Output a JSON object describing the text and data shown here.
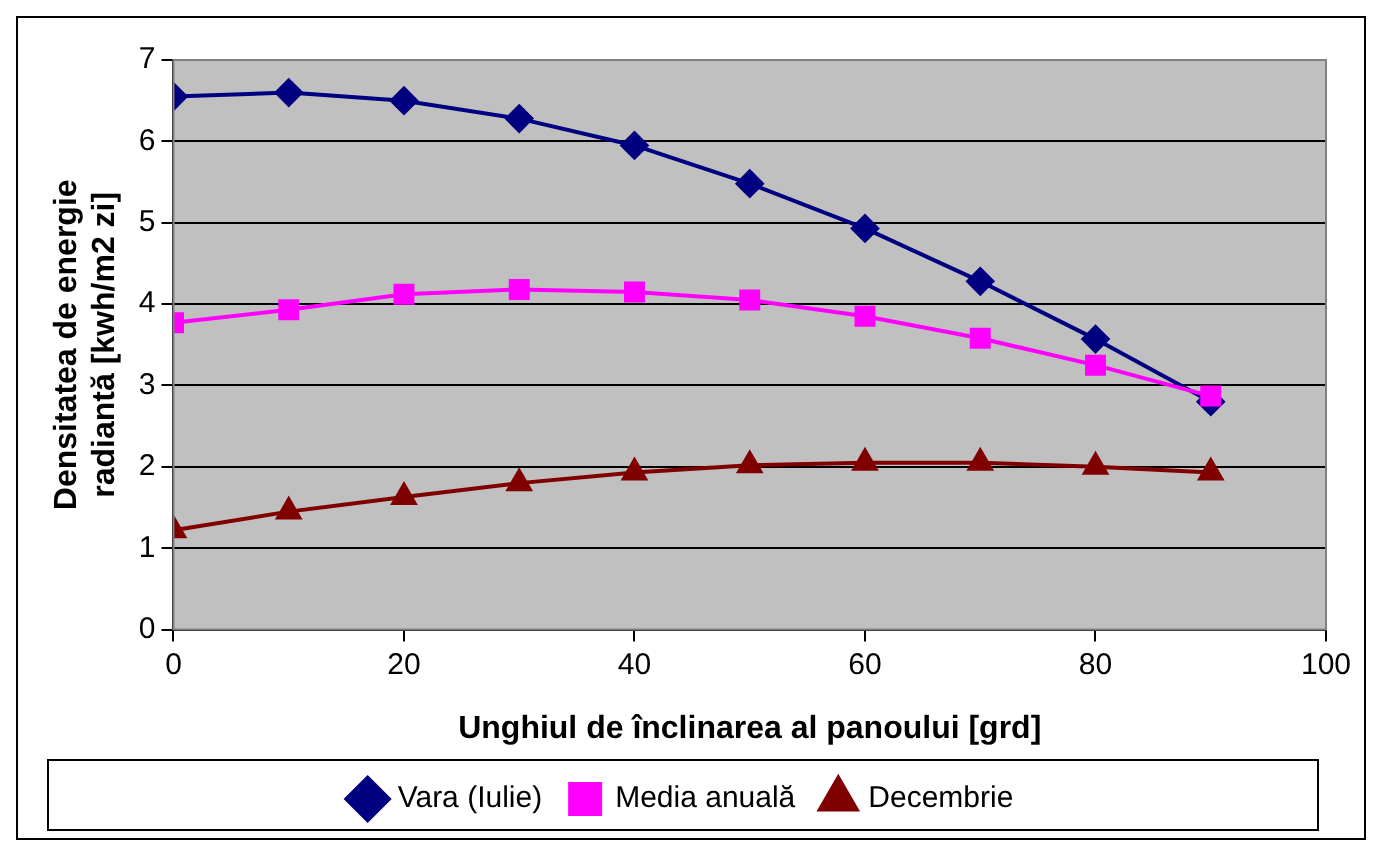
{
  "chart_data": {
    "type": "line",
    "xlabel": "Unghiul de înclinarea al panoului [grd]",
    "ylabel": "Densitatea de energie radiantă [kwh/m2 zi]",
    "x": [
      0,
      10,
      20,
      30,
      40,
      50,
      60,
      70,
      80,
      90
    ],
    "xlim": [
      0,
      100
    ],
    "xticks": [
      0,
      20,
      40,
      60,
      80,
      100
    ],
    "ylim": [
      0,
      7
    ],
    "yticks": [
      0,
      1,
      2,
      3,
      4,
      5,
      6,
      7
    ],
    "grid": "y",
    "legend": "bottom",
    "series": [
      {
        "name": "Vara (Iulie)",
        "color": "#000080",
        "marker": "diamond",
        "values": [
          6.55,
          6.6,
          6.5,
          6.28,
          5.95,
          5.48,
          4.93,
          4.28,
          3.57,
          2.8
        ]
      },
      {
        "name": "Media anuală",
        "color": "#ff00ff",
        "marker": "square",
        "values": [
          3.77,
          3.93,
          4.12,
          4.18,
          4.15,
          4.05,
          3.85,
          3.58,
          3.25,
          2.87
        ]
      },
      {
        "name": "Decembrie",
        "color": "#800000",
        "marker": "triangle",
        "values": [
          1.22,
          1.45,
          1.63,
          1.8,
          1.93,
          2.02,
          2.05,
          2.05,
          2.0,
          1.93
        ]
      }
    ]
  }
}
